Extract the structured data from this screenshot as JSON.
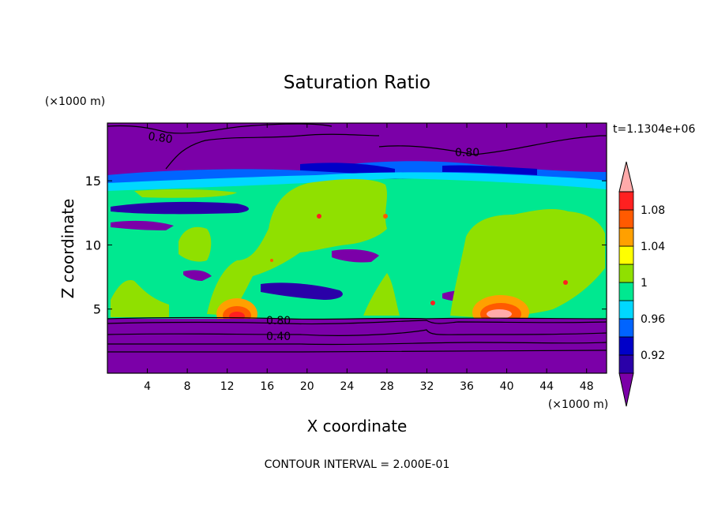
{
  "chart_data": {
    "type": "heatmap",
    "title": "Saturation Ratio",
    "xlabel": "X coordinate",
    "ylabel": "Z coordinate",
    "x_unit": "(×1000 m)",
    "y_unit": "(×1000 m)",
    "time_label": "t=1.1304e+06",
    "footer": "CONTOUR INTERVAL = 2.000E-01",
    "xlim": [
      0,
      50
    ],
    "ylim": [
      0,
      19.5
    ],
    "x_ticks": [
      4,
      8,
      12,
      16,
      20,
      24,
      28,
      32,
      36,
      40,
      44,
      48
    ],
    "y_ticks": [
      5,
      10,
      15
    ],
    "contour_labels": [
      "0.80",
      "0.80",
      "0.80",
      "0.40"
    ],
    "colorbar": {
      "levels": [
        0.9,
        0.92,
        0.94,
        0.96,
        0.98,
        1.0,
        1.02,
        1.04,
        1.06,
        1.08,
        1.1
      ],
      "tick_labels": [
        "0.92",
        "0.96",
        "1",
        "1.04",
        "1.08"
      ],
      "colors": [
        "#7b00a8",
        "#2a00a8",
        "#0000c8",
        "#0064ff",
        "#00d8ff",
        "#00e890",
        "#90e000",
        "#ffff00",
        "#ffa000",
        "#ff5a00",
        "#ff2020",
        "#ffaaaa"
      ]
    }
  }
}
